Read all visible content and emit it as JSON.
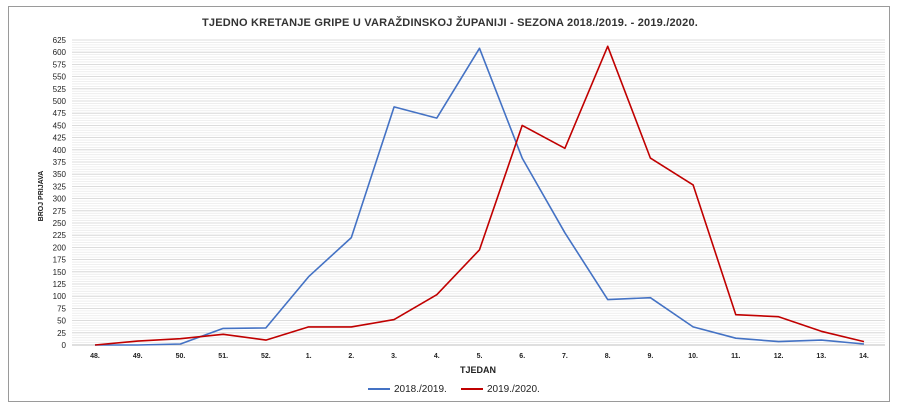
{
  "chart_data": {
    "type": "line",
    "title": "TJEDNO KRETANJE GRIPE U VARAŽDINSKOJ ŽUPANIJI - SEZONA 2018./2019. - 2019./2020.",
    "xlabel": "TJEDAN",
    "ylabel": "BROJ PRIJAVA",
    "categories": [
      "48.",
      "49.",
      "50.",
      "51.",
      "52.",
      "1.",
      "2.",
      "3.",
      "4.",
      "5.",
      "6.",
      "7.",
      "8.",
      "9.",
      "10.",
      "11.",
      "12.",
      "13.",
      "14."
    ],
    "ylim": [
      0,
      625
    ],
    "yticks": [
      0,
      25,
      50,
      75,
      100,
      125,
      150,
      175,
      200,
      225,
      250,
      275,
      300,
      325,
      350,
      375,
      400,
      425,
      450,
      475,
      500,
      525,
      550,
      575,
      600,
      625
    ],
    "grid": true,
    "legend_position": "bottom",
    "series": [
      {
        "name": "2018./2019.",
        "color": "#4472C4",
        "values": [
          0,
          0,
          2,
          34,
          35,
          140,
          220,
          488,
          465,
          608,
          383,
          230,
          93,
          97,
          37,
          14,
          7,
          10,
          2
        ]
      },
      {
        "name": "2019./2020.",
        "color": "#C00000",
        "values": [
          0,
          8,
          13,
          22,
          10,
          37,
          37,
          52,
          103,
          195,
          450,
          403,
          612,
          383,
          328,
          62,
          58,
          28,
          7
        ]
      }
    ]
  }
}
